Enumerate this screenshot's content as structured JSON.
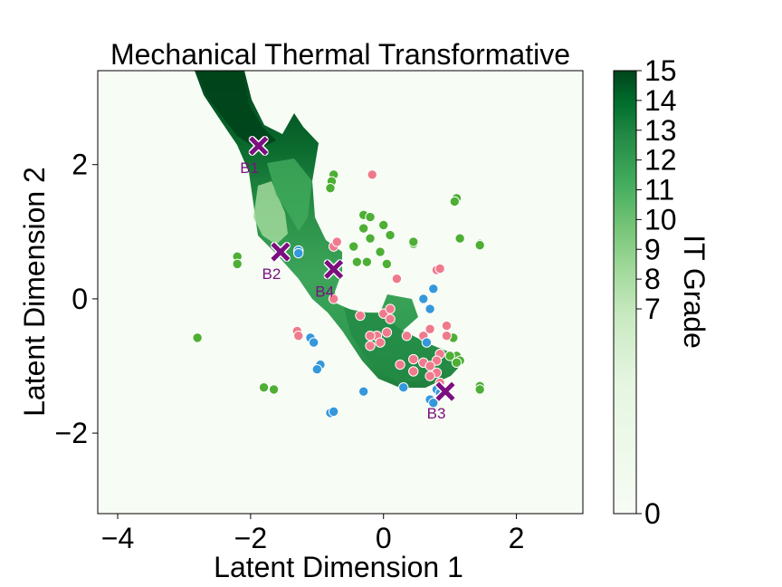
{
  "chart_data": {
    "type": "scatter",
    "title": "Mechanical Thermal Transformative",
    "xlabel": "Latent Dimension 1",
    "ylabel": "Latent Dimension 2",
    "xlim": [
      -4.3,
      3.0
    ],
    "ylim": [
      -3.2,
      3.4
    ],
    "xticks": [
      "−4",
      "−2",
      "0",
      "2"
    ],
    "yticks": [
      "−2",
      "0",
      "2"
    ],
    "xtick_values": [
      -4,
      -2,
      0,
      2
    ],
    "ytick_values": [
      -2,
      0,
      2
    ],
    "colorbar": {
      "label": "IT Grade",
      "range": [
        0,
        15
      ],
      "ticks": [
        "0",
        "7",
        "8",
        "9",
        "10",
        "11",
        "12",
        "13",
        "14",
        "15"
      ],
      "tick_values": [
        0,
        7,
        8,
        9,
        10,
        11,
        12,
        13,
        14,
        15
      ],
      "colors": [
        "#f7fcf5",
        "#c7e9c0",
        "#74c476",
        "#31a354",
        "#006d2c",
        "#00441b"
      ]
    },
    "colors": {
      "green_points": "#4daf34",
      "pink_points": "#ef7a8c",
      "blue_points": "#3498db",
      "markers": "#7b0f7f"
    },
    "series": [
      {
        "color": "#4daf34",
        "points": [
          [
            -2.2,
            0.63
          ],
          [
            -2.2,
            0.52
          ],
          [
            -2.8,
            -0.58
          ],
          [
            -1.8,
            -1.32
          ],
          [
            -1.65,
            -1.35
          ],
          [
            -0.75,
            1.85
          ],
          [
            -0.78,
            1.75
          ],
          [
            -0.8,
            1.65
          ],
          [
            -0.3,
            1.25
          ],
          [
            -0.2,
            1.22
          ],
          [
            -0.3,
            1.05
          ],
          [
            0.0,
            1.1
          ],
          [
            -0.2,
            0.9
          ],
          [
            -0.05,
            0.7
          ],
          [
            0.1,
            0.95
          ],
          [
            -0.45,
            0.78
          ],
          [
            -0.4,
            0.55
          ],
          [
            -0.25,
            0.55
          ],
          [
            0.05,
            0.52
          ],
          [
            0.45,
            0.82
          ],
          [
            0.45,
            0.85
          ],
          [
            1.1,
            1.5
          ],
          [
            1.07,
            1.45
          ],
          [
            1.15,
            0.9
          ],
          [
            1.45,
            0.82
          ],
          [
            1.45,
            0.8
          ],
          [
            1.1,
            -0.85
          ],
          [
            1.0,
            -0.85
          ],
          [
            1.15,
            -0.92
          ],
          [
            1.1,
            -0.95
          ],
          [
            1.45,
            -1.3
          ],
          [
            1.45,
            -1.35
          ],
          [
            1.05,
            -0.58
          ]
        ]
      },
      {
        "color": "#ef7a8c",
        "points": [
          [
            -0.17,
            1.85
          ],
          [
            -0.75,
            0.78
          ],
          [
            -0.7,
            0.85
          ],
          [
            0.2,
            0.3
          ],
          [
            0.8,
            0.43
          ],
          [
            0.85,
            0.45
          ],
          [
            -0.75,
            0.0
          ],
          [
            -1.3,
            -0.48
          ],
          [
            -1.28,
            -0.55
          ],
          [
            -0.35,
            -0.25
          ],
          [
            0.0,
            -0.22
          ],
          [
            0.1,
            -0.3
          ],
          [
            0.05,
            -0.5
          ],
          [
            -0.1,
            -0.55
          ],
          [
            -0.2,
            -0.55
          ],
          [
            -0.2,
            -0.7
          ],
          [
            -0.05,
            -0.65
          ],
          [
            0.1,
            -0.15
          ],
          [
            0.35,
            -0.55
          ],
          [
            0.6,
            -0.55
          ],
          [
            0.7,
            -0.45
          ],
          [
            0.95,
            -0.4
          ],
          [
            0.95,
            -0.55
          ],
          [
            0.85,
            -0.82
          ],
          [
            0.8,
            -0.92
          ],
          [
            0.6,
            -0.95
          ],
          [
            0.45,
            -0.9
          ],
          [
            0.25,
            -0.98
          ],
          [
            0.45,
            -1.08
          ],
          [
            0.7,
            -1.0
          ],
          [
            0.8,
            -1.1
          ],
          [
            0.85,
            -1.25
          ],
          [
            0.7,
            -1.15
          ]
        ]
      },
      {
        "color": "#3498db",
        "points": [
          [
            -1.28,
            0.72
          ],
          [
            -1.28,
            0.68
          ],
          [
            -1.1,
            -0.58
          ],
          [
            -1.05,
            -0.65
          ],
          [
            -0.95,
            -0.98
          ],
          [
            -1.0,
            -1.05
          ],
          [
            -0.8,
            -1.7
          ],
          [
            -0.75,
            -1.68
          ],
          [
            -0.3,
            -1.38
          ],
          [
            0.3,
            -1.32
          ],
          [
            0.6,
            0.0
          ],
          [
            0.75,
            0.15
          ],
          [
            0.7,
            -0.15
          ],
          [
            0.65,
            -0.65
          ],
          [
            0.7,
            -1.5
          ],
          [
            0.75,
            -1.55
          ],
          [
            0.8,
            -1.35
          ],
          [
            0.85,
            -1.4
          ]
        ]
      }
    ],
    "annotations": [
      {
        "label": "B1",
        "x": -1.88,
        "y": 2.28
      },
      {
        "label": "B2",
        "x": -1.55,
        "y": 0.7
      },
      {
        "label": "B3",
        "x": 0.93,
        "y": -1.38
      },
      {
        "label": "B4",
        "x": -0.75,
        "y": 0.44
      }
    ]
  }
}
